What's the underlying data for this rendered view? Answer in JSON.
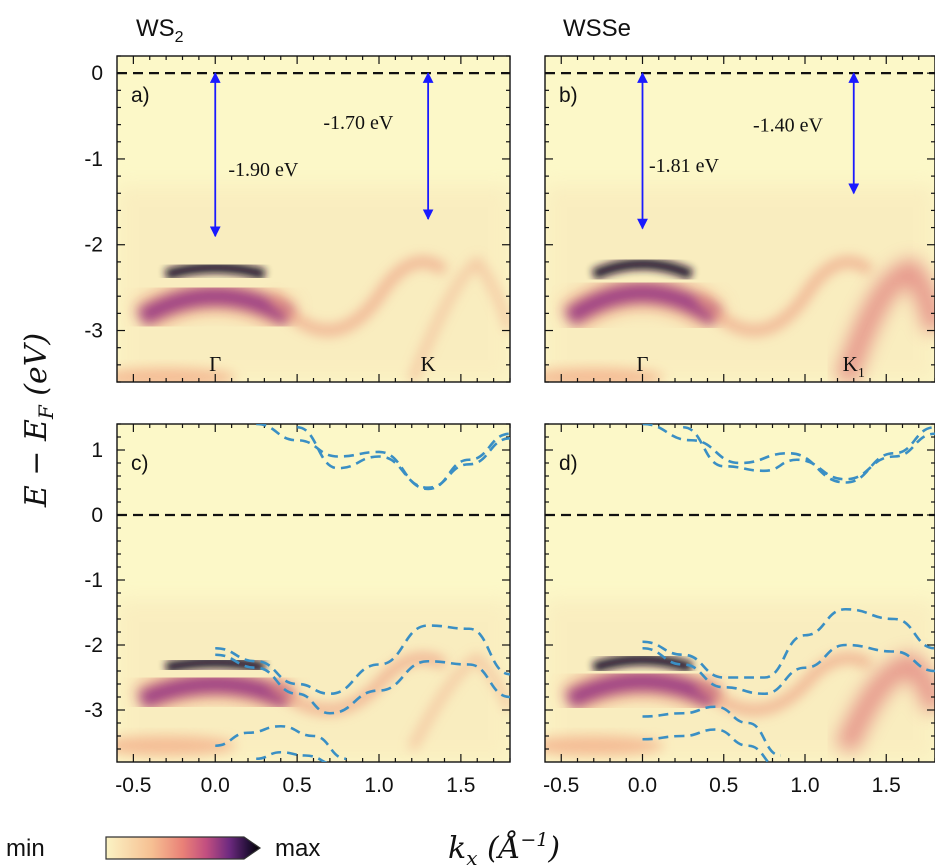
{
  "figure": {
    "column_titles": [
      {
        "base": "WS",
        "sub": "2"
      },
      {
        "base": "WSSe",
        "sub": ""
      }
    ],
    "y_axis_title": "E − E",
    "y_axis_title_sub": "F",
    "y_axis_title_unit": " (eV)",
    "x_axis_title": "k",
    "x_axis_title_sub": "x",
    "x_axis_title_unit": " (Å",
    "x_axis_title_exp": "−1",
    "x_axis_title_close": ")",
    "colorbar": {
      "min_label": "min",
      "max_label": "max",
      "colors": [
        "#fbf3c4",
        "#f9c79a",
        "#ee8f7a",
        "#c9537f",
        "#7e2d85",
        "#2a0f3d",
        "#000000"
      ]
    },
    "dashed_line_color": "#3a8fc4",
    "arrow_color": "#1a1aff",
    "background_color": "#fcf8c8"
  },
  "chart_data": [
    {
      "type": "heatmap",
      "panel_label": "a)",
      "column": "WS2",
      "xlabel": "kx (Å−1)",
      "ylabel": "E − EF (eV)",
      "xlim": [
        -0.6,
        1.8
      ],
      "ylim": [
        -3.6,
        0.2
      ],
      "xticks": [
        "-0.5",
        "0.0",
        "0.5",
        "1.0",
        "1.5"
      ],
      "yticks": [
        "0",
        "-1",
        "-2",
        "-3"
      ],
      "fermi_level": 0,
      "point_labels": [
        {
          "text": "Γ",
          "sub": "",
          "x": 0.0,
          "y": -3.4
        },
        {
          "text": "K",
          "sub": "",
          "x": 1.3,
          "y": -3.4
        }
      ],
      "annotations": [
        {
          "text": "-1.90 eV",
          "x_from": 0.0,
          "y_from": 0.0,
          "y_to": -1.9,
          "label_x": 0.08,
          "label_y": -1.2
        },
        {
          "text": "-1.70 eV",
          "x_from": 1.3,
          "y_from": 0.0,
          "y_to": -1.7,
          "label_x": 0.66,
          "label_y": -0.65
        }
      ]
    },
    {
      "type": "heatmap",
      "panel_label": "b)",
      "column": "WSSe",
      "xlabel": "kx (Å−1)",
      "ylabel": "E − EF (eV)",
      "xlim": [
        -0.6,
        1.8
      ],
      "ylim": [
        -3.6,
        0.2
      ],
      "xticks": [
        "-0.5",
        "0.0",
        "0.5",
        "1.0",
        "1.5"
      ],
      "yticks": [
        "0",
        "-1",
        "-2",
        "-3"
      ],
      "fermi_level": 0,
      "point_labels": [
        {
          "text": "Γ",
          "sub": "",
          "x": 0.0,
          "y": -3.4
        },
        {
          "text": "K",
          "sub": "1",
          "x": 1.3,
          "y": -3.4
        }
      ],
      "annotations": [
        {
          "text": "-1.81 eV",
          "x_from": 0.0,
          "y_from": 0.0,
          "y_to": -1.81,
          "label_x": 0.04,
          "label_y": -1.15
        },
        {
          "text": "-1.40 eV",
          "x_from": 1.3,
          "y_from": 0.0,
          "y_to": -1.4,
          "label_x": 0.68,
          "label_y": -0.68
        }
      ]
    },
    {
      "type": "heatmap",
      "panel_label": "c)",
      "column": "WS2",
      "xlabel": "kx (Å−1)",
      "ylabel": "E − EF (eV)",
      "xlim": [
        -0.6,
        1.8
      ],
      "ylim": [
        -3.8,
        1.4
      ],
      "xticks": [
        "-0.5",
        "0.0",
        "0.5",
        "1.0",
        "1.5"
      ],
      "yticks": [
        "1",
        "0",
        "-1",
        "-2",
        "-3"
      ],
      "fermi_level": 0,
      "series": [
        {
          "x": [
            0.25,
            0.5,
            0.75,
            1.0,
            1.3,
            1.55,
            1.8
          ],
          "values": [
            1.4,
            1.15,
            0.9,
            0.97,
            0.4,
            0.85,
            1.25
          ]
        },
        {
          "x": [
            0.5,
            0.75,
            1.0,
            1.3,
            1.55,
            1.8
          ],
          "values": [
            1.35,
            0.72,
            0.9,
            0.42,
            0.78,
            1.18
          ]
        },
        {
          "x": [
            0.0,
            0.25,
            0.5,
            0.7,
            1.0,
            1.3,
            1.55,
            1.8
          ],
          "values": [
            -2.05,
            -2.25,
            -2.6,
            -2.75,
            -2.3,
            -1.7,
            -1.75,
            -2.45
          ]
        },
        {
          "x": [
            0.0,
            0.25,
            0.5,
            0.7,
            1.0,
            1.3,
            1.55,
            1.8
          ],
          "values": [
            -2.15,
            -2.35,
            -2.75,
            -3.05,
            -2.7,
            -2.25,
            -2.3,
            -2.8
          ]
        },
        {
          "x": [
            0.0,
            0.2,
            0.4,
            0.6,
            0.8
          ],
          "values": [
            -3.55,
            -3.35,
            -3.25,
            -3.4,
            -3.75
          ]
        },
        {
          "x": [
            0.25,
            0.4,
            0.55,
            0.75
          ],
          "values": [
            -3.75,
            -3.65,
            -3.7,
            -3.85
          ]
        }
      ]
    },
    {
      "type": "heatmap",
      "panel_label": "d)",
      "column": "WSSe",
      "xlabel": "kx (Å−1)",
      "ylabel": "E − EF (eV)",
      "xlim": [
        -0.6,
        1.8
      ],
      "ylim": [
        -3.8,
        1.4
      ],
      "xticks": [
        "-0.5",
        "0.0",
        "0.5",
        "1.0",
        "1.5"
      ],
      "yticks": [
        "1",
        "0",
        "-1",
        "-2",
        "-3"
      ],
      "fermi_level": 0,
      "series": [
        {
          "x": [
            0.0,
            0.3,
            0.6,
            0.9,
            1.25,
            1.55,
            1.8
          ],
          "values": [
            1.4,
            1.15,
            0.8,
            0.95,
            0.5,
            0.95,
            1.35
          ]
        },
        {
          "x": [
            0.25,
            0.5,
            0.75,
            0.95,
            1.25,
            1.55,
            1.8
          ],
          "values": [
            1.35,
            0.75,
            0.68,
            0.85,
            0.55,
            0.9,
            1.25
          ]
        },
        {
          "x": [
            0.0,
            0.25,
            0.5,
            0.75,
            1.0,
            1.25,
            1.55,
            1.8
          ],
          "values": [
            -1.95,
            -2.15,
            -2.5,
            -2.5,
            -1.85,
            -1.45,
            -1.6,
            -2.05
          ]
        },
        {
          "x": [
            0.0,
            0.25,
            0.5,
            0.75,
            1.0,
            1.25,
            1.55,
            1.8
          ],
          "values": [
            -2.05,
            -2.3,
            -2.65,
            -2.75,
            -2.35,
            -2.0,
            -2.1,
            -2.4
          ]
        },
        {
          "x": [
            0.0,
            0.25,
            0.45,
            0.65,
            0.85
          ],
          "values": [
            -3.1,
            -3.05,
            -2.95,
            -3.2,
            -3.7
          ]
        },
        {
          "x": [
            0.0,
            0.25,
            0.45,
            0.65,
            0.85
          ],
          "values": [
            -3.45,
            -3.4,
            -3.3,
            -3.55,
            -3.9
          ]
        }
      ]
    }
  ]
}
